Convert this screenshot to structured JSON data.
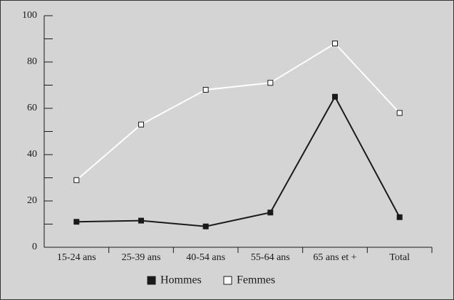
{
  "chart_data": {
    "type": "line",
    "categories": [
      "15-24 ans",
      "25-39 ans",
      "40-54 ans",
      "55-64 ans",
      "65 ans et +",
      "Total"
    ],
    "series": [
      {
        "name": "Hommes",
        "color": "#1a1a1a",
        "marker": "filled",
        "values": [
          11,
          11.5,
          9,
          15,
          65,
          13
        ]
      },
      {
        "name": "Femmes",
        "color": "#ffffff",
        "marker": "open",
        "values": [
          29,
          53,
          68,
          71,
          88,
          58
        ]
      }
    ],
    "ylim": [
      0,
      100
    ],
    "yticks": [
      0,
      20,
      40,
      60,
      80,
      100
    ],
    "yminorticks": [
      10,
      30,
      50,
      70,
      90
    ],
    "legend": "bottom"
  }
}
